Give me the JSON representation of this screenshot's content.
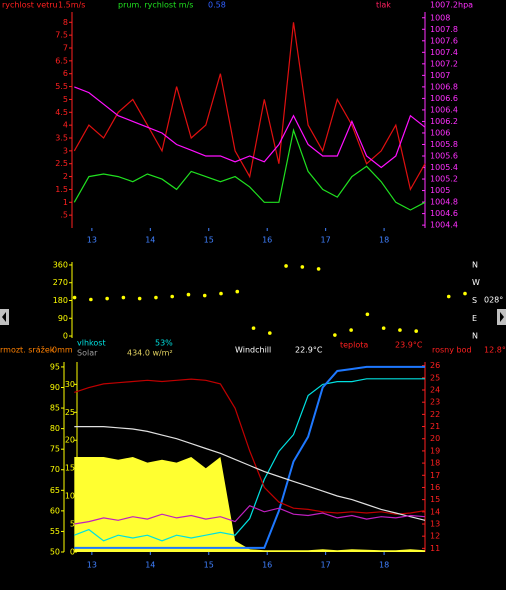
{
  "chart_data": [
    {
      "type": "line",
      "x": [
        12.7,
        12.95,
        13.2,
        13.45,
        13.7,
        13.95,
        14.2,
        14.45,
        14.7,
        14.95,
        15.2,
        15.45,
        15.7,
        15.95,
        16.2,
        16.45,
        16.7,
        16.95,
        17.2,
        17.45,
        17.7,
        17.95,
        18.2,
        18.45,
        18.7
      ],
      "xlim": [
        12.66,
        18.7
      ],
      "xticks": [
        13,
        14,
        15,
        16,
        17,
        18
      ],
      "ylim": [
        0,
        8.4
      ],
      "yticks": [
        {
          "value": 0.5,
          "label": ".5"
        },
        1,
        1.5,
        2,
        2.5,
        3,
        3.5,
        4,
        4.5,
        5,
        5.5,
        6,
        6.5,
        7,
        7.5,
        8
      ],
      "y2lim": [
        1004.35,
        1008.1
      ],
      "y2ticks": [
        1004.4,
        1004.6,
        1004.8,
        1005,
        1005.2,
        1005.4,
        1005.6,
        1005.8,
        1006,
        1006.2,
        1006.4,
        1006.6,
        1006.8,
        1007,
        1007.2,
        1007.4,
        1007.6,
        1007.8,
        1008
      ],
      "series": [
        {
          "name": "rychlost vetru",
          "color": "#e01010",
          "values": [
            3,
            4,
            3.5,
            4.5,
            5,
            4,
            3,
            5.5,
            3.5,
            4,
            6,
            3,
            2,
            5,
            2.5,
            8,
            4,
            3,
            5,
            4,
            2.5,
            3,
            4,
            1.5,
            2.5
          ]
        },
        {
          "name": "prum. rychlost m/s",
          "color": "#20e020",
          "values": [
            1,
            2,
            2.1,
            2,
            1.8,
            2.1,
            1.9,
            1.5,
            2.2,
            2,
            1.8,
            2,
            1.6,
            1,
            1,
            3.8,
            2.2,
            1.5,
            1.2,
            2,
            2.4,
            1.8,
            1,
            0.7,
            1
          ]
        },
        {
          "name": "tlak",
          "color": "#ff10ff",
          "axis": "y2",
          "values": [
            1006.8,
            1006.7,
            1006.5,
            1006.3,
            1006.2,
            1006.1,
            1006,
            1005.8,
            1005.7,
            1005.6,
            1005.6,
            1005.5,
            1005.6,
            1005.5,
            1005.8,
            1006.3,
            1005.8,
            1005.6,
            1005.6,
            1006.2,
            1005.6,
            1005.4,
            1005.6,
            1006.3,
            1006.1
          ]
        }
      ]
    },
    {
      "type": "scatter",
      "x": [
        12.7,
        12.95,
        13.2,
        13.45,
        13.7,
        13.95,
        14.2,
        14.45,
        14.7,
        14.95,
        15.2,
        15.45,
        15.7,
        15.95,
        16.2,
        16.45,
        16.7,
        16.95,
        17.2,
        17.45,
        17.7,
        17.95,
        18.2,
        18.45,
        18.7
      ],
      "xlim": [
        12.66,
        18.7
      ],
      "ylim": [
        -10,
        375
      ],
      "yticks": [
        0,
        90,
        180,
        270,
        360
      ],
      "y2lim": [
        -10,
        375
      ],
      "y2ticks": [
        {
          "value": 0,
          "label": "N"
        },
        {
          "value": 90,
          "label": "E"
        },
        {
          "value": 180,
          "label": "S"
        },
        {
          "value": 270,
          "label": "W"
        },
        {
          "value": 360,
          "label": "N"
        }
      ],
      "series": [
        {
          "color": "#ffff00",
          "values": [
            195,
            185,
            190,
            195,
            190,
            195,
            200,
            210,
            205,
            215,
            225,
            40,
            15,
            355,
            350,
            340,
            5,
            30,
            110,
            40,
            30,
            25,
            null,
            200,
            215
          ]
        }
      ]
    },
    {
      "type": "line",
      "x": [
        12.7,
        12.95,
        13.2,
        13.45,
        13.7,
        13.95,
        14.2,
        14.45,
        14.7,
        14.95,
        15.2,
        15.45,
        15.7,
        15.95,
        16.2,
        16.45,
        16.7,
        16.95,
        17.2,
        17.45,
        17.7,
        17.95,
        18.2,
        18.45,
        18.7
      ],
      "xlim": [
        12.66,
        18.7
      ],
      "xticks": [
        13,
        14,
        15,
        16,
        17,
        18
      ],
      "ylim": [
        50,
        96.2
      ],
      "yticks": [
        50,
        55,
        60,
        65,
        70,
        75,
        80,
        85,
        90,
        95
      ],
      "y3lim": [
        0,
        34
      ],
      "y3ticks": [
        0,
        5,
        10,
        15,
        20,
        25,
        30
      ],
      "y2lim": [
        10.7,
        26.3
      ],
      "y2ticks": [
        11,
        12,
        13,
        14,
        15,
        16,
        17,
        18,
        19,
        20,
        21,
        22,
        23,
        24,
        25,
        26
      ],
      "series": [
        {
          "name": "Solar",
          "color": "#ffff30",
          "axis": "y3",
          "fill": true,
          "values": [
            17,
            17,
            17,
            16.5,
            17,
            16,
            16.5,
            16,
            17,
            15,
            17,
            2,
            0.5,
            0.3,
            0.3,
            0.3,
            0.3,
            0.5,
            0.3,
            0.5,
            0.4,
            0.3,
            0.3,
            0.5,
            0.3
          ]
        },
        {
          "color": "#00e0e0",
          "axis": "y3",
          "values": [
            3,
            4,
            2,
            3,
            2.5,
            3,
            2,
            3,
            2.5,
            3,
            3.5,
            3,
            6,
            13,
            18,
            21,
            28,
            30,
            30.5,
            30.5,
            31,
            31,
            31,
            31,
            31
          ]
        },
        {
          "name": "vlhkost",
          "color": "#1e78ff",
          "values": [
            51,
            51,
            51,
            51,
            51,
            51,
            51,
            51,
            51,
            51,
            51,
            51,
            51,
            51,
            60,
            72,
            78,
            90,
            94,
            94.5,
            95,
            95,
            95,
            95,
            95
          ]
        },
        {
          "name": "teplota",
          "color": "#c00000",
          "axis": "y2",
          "values": [
            23.8,
            24.2,
            24.5,
            24.6,
            24.7,
            24.8,
            24.7,
            24.8,
            24.9,
            24.8,
            24.5,
            22.5,
            19,
            16,
            14.8,
            14.3,
            14.2,
            14,
            13.9,
            14,
            13.9,
            14,
            13.8,
            13.9,
            14.1
          ]
        },
        {
          "name": "Windchill",
          "color": "#e0e0e0",
          "axis": "y2",
          "values": [
            21,
            21,
            21,
            20.9,
            20.8,
            20.6,
            20.3,
            20,
            19.6,
            19.2,
            18.8,
            18.3,
            17.8,
            17.3,
            16.9,
            16.5,
            16.1,
            15.7,
            15.3,
            15,
            14.6,
            14.2,
            13.9,
            13.6,
            13.3
          ]
        },
        {
          "name": "rosny bod",
          "color": "#c020c0",
          "axis": "y2",
          "values": [
            13,
            13.2,
            13.5,
            13.3,
            13.6,
            13.4,
            13.8,
            13.5,
            13.7,
            13.4,
            13.6,
            13.2,
            14.5,
            14,
            14.3,
            13.8,
            13.7,
            13.9,
            13.5,
            13.7,
            13.4,
            13.6,
            13.5,
            13.7,
            13.6
          ]
        }
      ]
    }
  ],
  "readouts": {
    "wind": "1.5m/s",
    "avg_wind": "0.58",
    "pressure": "1007.2hpa",
    "direction": "028°",
    "humidity": "53%",
    "solar": "434.0 w/m²",
    "windchill": "22.9°C",
    "temperature": "23.9°C",
    "dew_point": "12.8°C",
    "rain_label": "rmozt. srážek",
    "rain": "0mm"
  }
}
